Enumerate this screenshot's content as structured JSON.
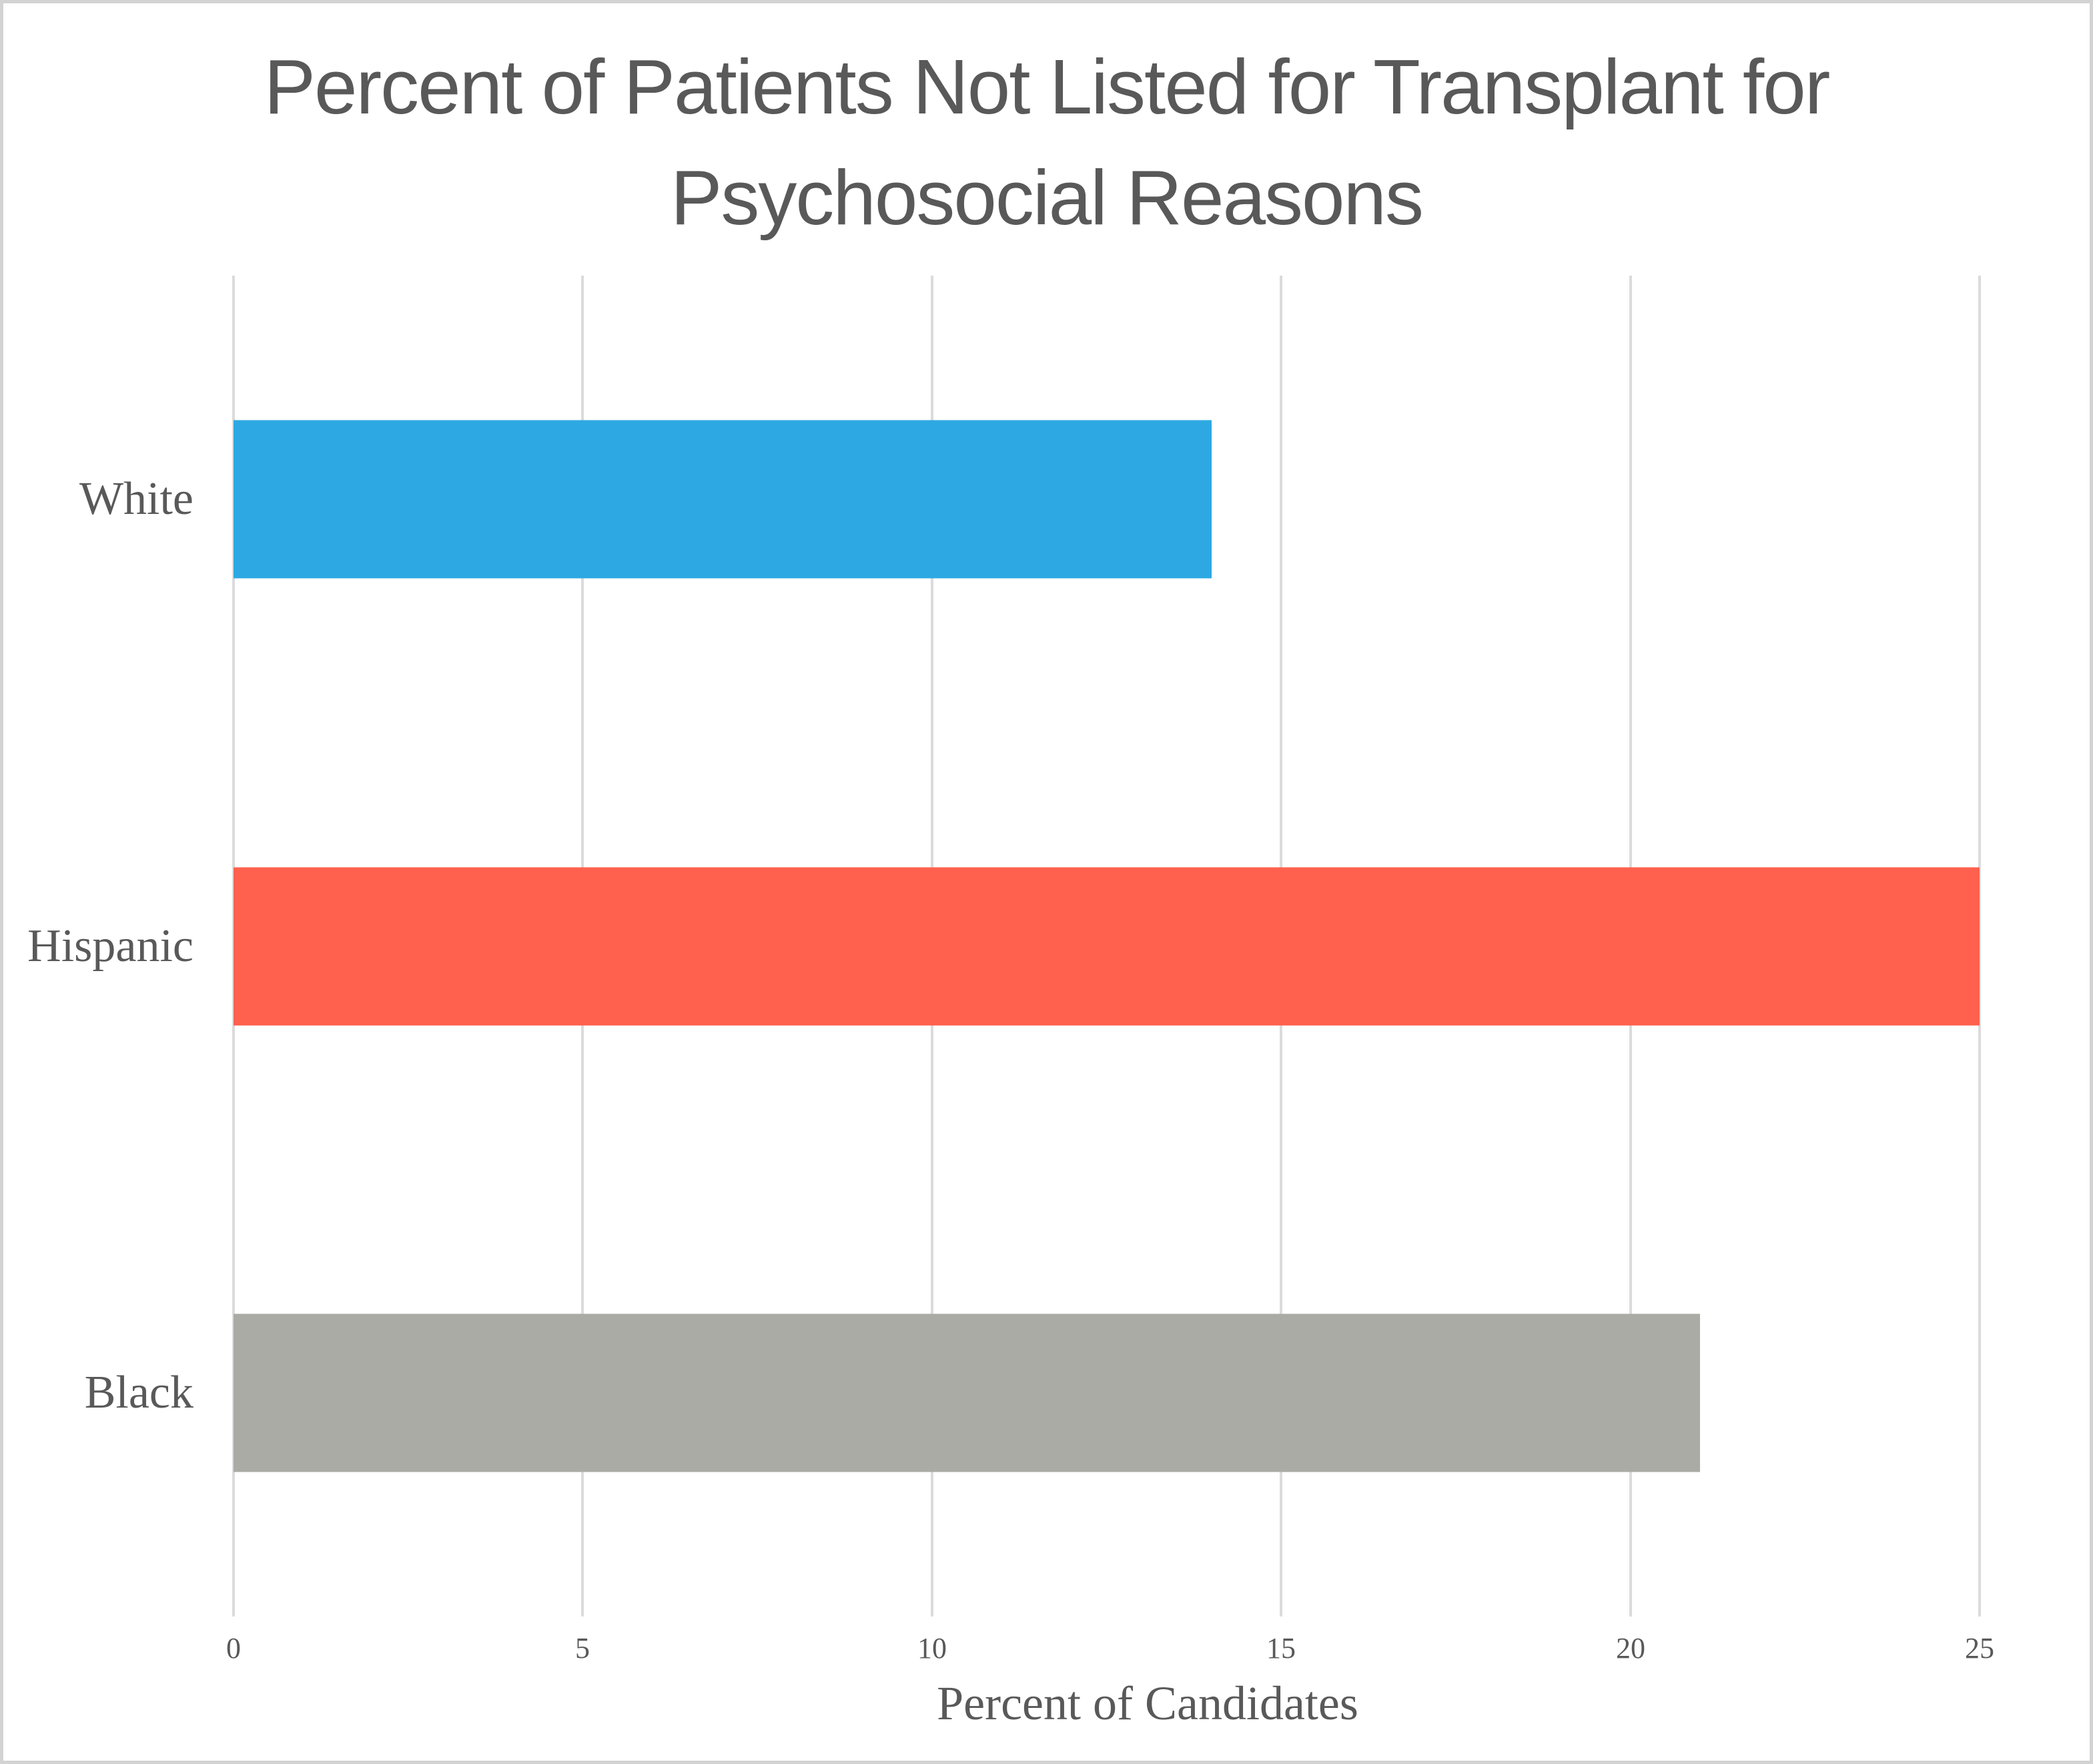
{
  "chart_data": {
    "type": "bar",
    "orientation": "horizontal",
    "title": "Percent of Patients Not Listed for Transplant for Psychosocial Reasons",
    "title_lines": [
      "Percent of Patients Not Listed for Transplant for",
      "Psychosocial Reasons"
    ],
    "categories": [
      "White",
      "Hispanic",
      "Black"
    ],
    "values": [
      14,
      25,
      21
    ],
    "bar_colors": [
      "#2DA8E2",
      "#FF614E",
      "#ABABA6"
    ],
    "xlabel": "Percent of Candidates",
    "xlim": [
      0,
      25
    ],
    "xticks": [
      0,
      5,
      10,
      15,
      20,
      25
    ],
    "grid": "vertical",
    "legend": "none"
  },
  "colors": {
    "title_text": "#595959",
    "axis_text": "#595959",
    "gridline": "#DBDBDB",
    "background": "#FFFFFF",
    "border": "#D3D3D3"
  }
}
